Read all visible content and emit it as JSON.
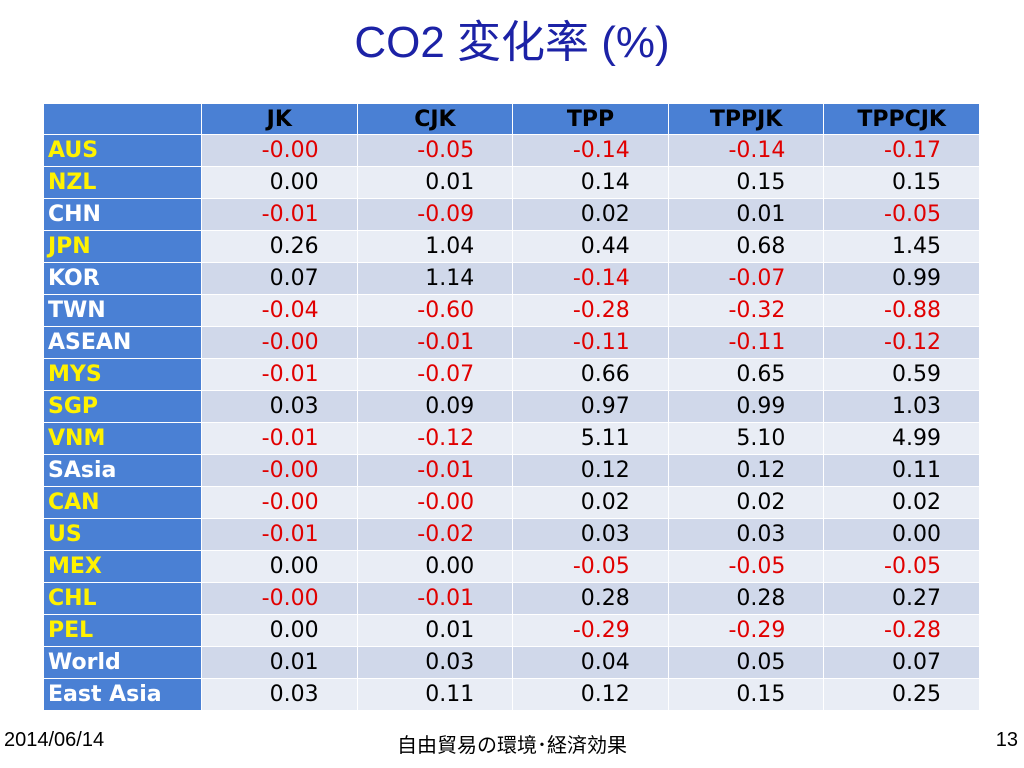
{
  "title": "CO2 変化率 (%)",
  "table": {
    "corner": "",
    "columns": [
      "JK",
      "CJK",
      "TPP",
      "TPPJK",
      "TPPCJK"
    ],
    "rows": [
      {
        "label": "AUS",
        "label_color": "yellow",
        "values": [
          "-0.00",
          "-0.05",
          "-0.14",
          "-0.14",
          "-0.17"
        ]
      },
      {
        "label": "NZL",
        "label_color": "yellow",
        "values": [
          "0.00",
          "0.01",
          "0.14",
          "0.15",
          "0.15"
        ]
      },
      {
        "label": "CHN",
        "label_color": "white",
        "values": [
          "-0.01",
          "-0.09",
          "0.02",
          "0.01",
          "-0.05"
        ]
      },
      {
        "label": "JPN",
        "label_color": "yellow",
        "values": [
          "0.26",
          "1.04",
          "0.44",
          "0.68",
          "1.45"
        ]
      },
      {
        "label": "KOR",
        "label_color": "white",
        "values": [
          "0.07",
          "1.14",
          "-0.14",
          "-0.07",
          "0.99"
        ]
      },
      {
        "label": "TWN",
        "label_color": "white",
        "values": [
          "-0.04",
          "-0.60",
          "-0.28",
          "-0.32",
          "-0.88"
        ]
      },
      {
        "label": "ASEAN",
        "label_color": "white",
        "values": [
          "-0.00",
          "-0.01",
          "-0.11",
          "-0.11",
          "-0.12"
        ]
      },
      {
        "label": "MYS",
        "label_color": "yellow",
        "values": [
          "-0.01",
          "-0.07",
          "0.66",
          "0.65",
          "0.59"
        ]
      },
      {
        "label": "SGP",
        "label_color": "yellow",
        "values": [
          "0.03",
          "0.09",
          "0.97",
          "0.99",
          "1.03"
        ]
      },
      {
        "label": "VNM",
        "label_color": "yellow",
        "values": [
          "-0.01",
          "-0.12",
          "5.11",
          "5.10",
          "4.99"
        ]
      },
      {
        "label": "SAsia",
        "label_color": "white",
        "values": [
          "-0.00",
          "-0.01",
          "0.12",
          "0.12",
          "0.11"
        ]
      },
      {
        "label": "CAN",
        "label_color": "yellow",
        "values": [
          "-0.00",
          "-0.00",
          "0.02",
          "0.02",
          "0.02"
        ]
      },
      {
        "label": "US",
        "label_color": "yellow",
        "values": [
          "-0.01",
          "-0.02",
          "0.03",
          "0.03",
          "0.00"
        ]
      },
      {
        "label": "MEX",
        "label_color": "yellow",
        "values": [
          "0.00",
          "0.00",
          "-0.05",
          "-0.05",
          "-0.05"
        ]
      },
      {
        "label": "CHL",
        "label_color": "yellow",
        "values": [
          "-0.00",
          "-0.01",
          "0.28",
          "0.28",
          "0.27"
        ]
      },
      {
        "label": "PEL",
        "label_color": "yellow",
        "values": [
          "0.00",
          "0.01",
          "-0.29",
          "-0.29",
          "-0.28"
        ]
      },
      {
        "label": "World",
        "label_color": "white",
        "values": [
          "0.01",
          "0.03",
          "0.04",
          "0.05",
          "0.07"
        ]
      },
      {
        "label": "East Asia",
        "label_color": "white",
        "values": [
          "0.03",
          "0.11",
          "0.12",
          "0.15",
          "0.25"
        ]
      }
    ]
  },
  "footer": {
    "date": "2014/06/14",
    "center": "自由貿易の環境･経済効果",
    "page": "13"
  },
  "colors": {
    "title": "#1c22a6",
    "header_bg": "#4a80d4",
    "row_odd": "#d0d8ea",
    "row_even": "#e9edf5",
    "negative": "#e00000",
    "label_yellow": "#fff200",
    "label_white": "#ffffff"
  }
}
